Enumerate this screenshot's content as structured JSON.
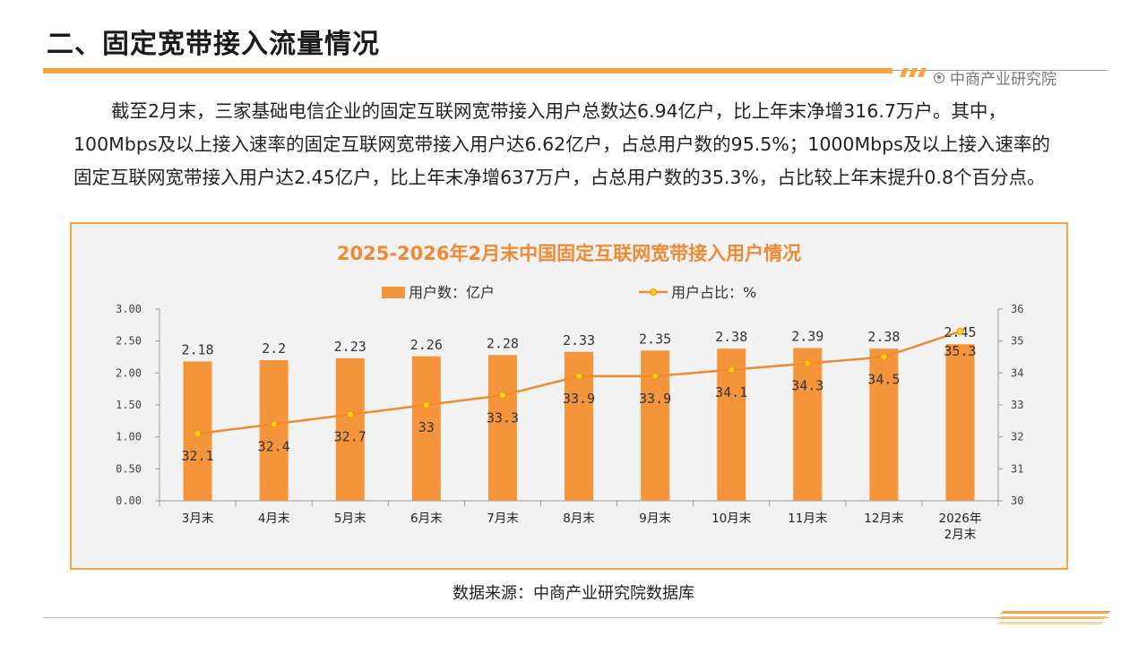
{
  "page": {
    "title": "二、固定宽带接入流量情况",
    "brand": "中商产业研究院",
    "paragraph": "截至2月末，三家基础电信企业的固定互联网宽带接入用户总数达6.94亿户，比上年末净增316.7万户。其中，100Mbps及以上接入速率的固定互联网宽带接入用户达6.62亿户，占总用户数的95.5%；1000Mbps及以上接入速率的固定互联网宽带接入用户达2.45亿户，比上年末净增637万户，占总用户数的35.3%，占比较上年末提升0.8个百分点。",
    "source": "数据来源：中商产业研究院数据库"
  },
  "colors": {
    "accent": "#f5a43f",
    "bar": "#f5953b",
    "line": "#ef8a33",
    "marker": "#ffd700"
  },
  "chart_data": {
    "type": "bar",
    "title": "2025-2026年2月末中国固定互联网宽带接入用户情况",
    "categories": [
      "3月末",
      "4月末",
      "5月末",
      "6月末",
      "7月末",
      "8月末",
      "9月末",
      "10月末",
      "11月末",
      "12月末",
      "2026年2月末"
    ],
    "series": [
      {
        "name": "用户数：亿户",
        "type": "bar",
        "axis": "left",
        "values": [
          2.18,
          2.2,
          2.23,
          2.26,
          2.28,
          2.33,
          2.35,
          2.38,
          2.39,
          2.38,
          2.45
        ],
        "labels": [
          "2.18",
          "2.2",
          "2.23",
          "2.26",
          "2.28",
          "2.33",
          "2.35",
          "2.38",
          "2.39",
          "2.38",
          "2.45"
        ]
      },
      {
        "name": "用户占比：%",
        "type": "line",
        "axis": "right",
        "values": [
          32.1,
          32.4,
          32.7,
          33,
          33.3,
          33.9,
          33.9,
          34.1,
          34.3,
          34.5,
          35.3
        ],
        "labels": [
          "32.1",
          "32.4",
          "32.7",
          "33",
          "33.3",
          "33.9",
          "33.9",
          "34.1",
          "34.3",
          "34.5",
          "35.3"
        ]
      }
    ],
    "y_left": {
      "range": [
        0,
        3
      ],
      "ticks": [
        "0.00",
        "0.50",
        "1.00",
        "1.50",
        "2.00",
        "2.50",
        "3.00"
      ]
    },
    "y_right": {
      "range": [
        30,
        36
      ],
      "ticks": [
        "30",
        "31",
        "32",
        "33",
        "34",
        "35",
        "36"
      ]
    },
    "legend_position": "top",
    "grid": false
  }
}
